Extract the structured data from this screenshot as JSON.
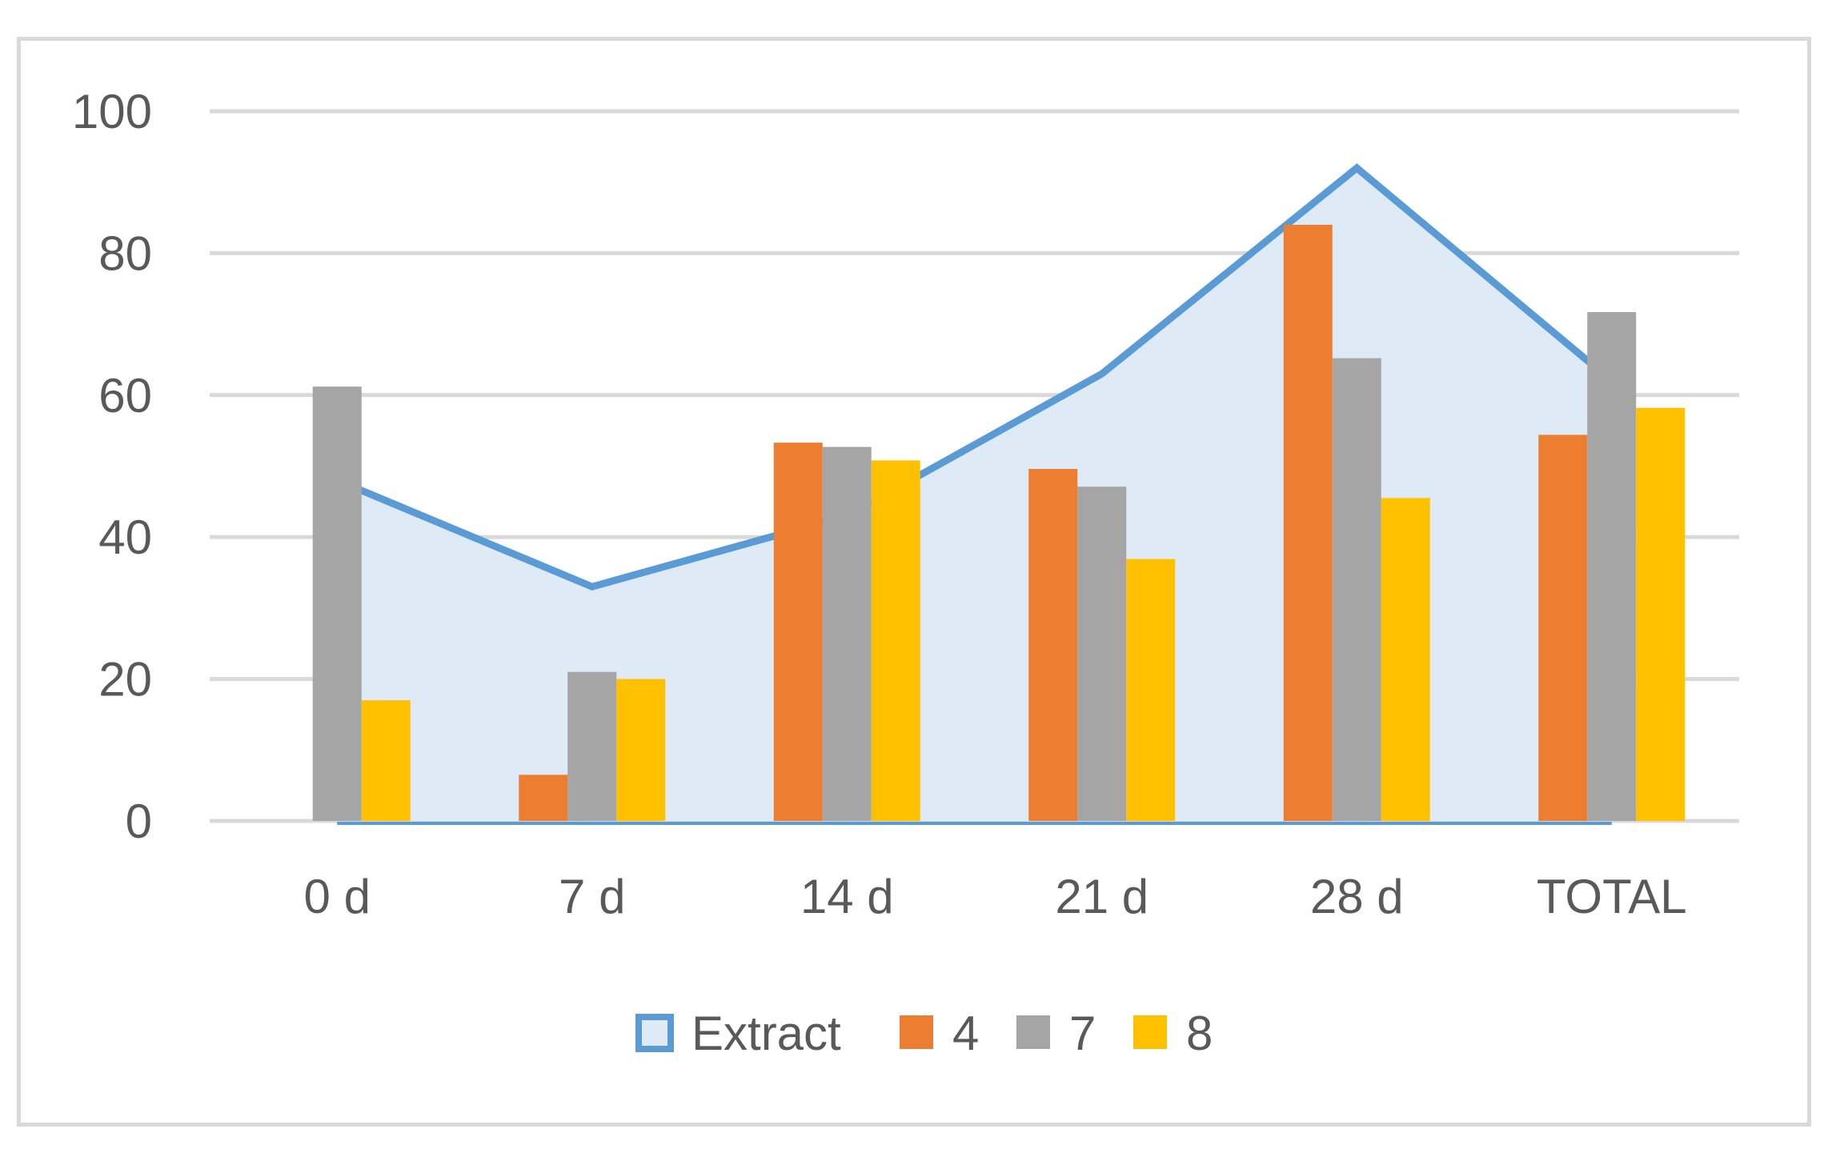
{
  "chart_data": {
    "type": "bar",
    "categories": [
      "0 d",
      "7 d",
      "14 d",
      "21 d",
      "28 d",
      "TOTAL"
    ],
    "ylim": [
      0,
      100
    ],
    "yticks": [
      0,
      20,
      40,
      60,
      80,
      100
    ],
    "grid": true,
    "legend_position": "bottom",
    "area_series": {
      "name": "Extract",
      "values": [
        48,
        33,
        43,
        63,
        92,
        62
      ],
      "line_color": "#5b9bd5",
      "fill_color": "#deebf7"
    },
    "series": [
      {
        "name": "4",
        "color": "#ed7d31",
        "values": [
          0,
          6.5,
          53.3,
          49.6,
          84,
          54.4
        ]
      },
      {
        "name": "7",
        "color": "#a5a5a5",
        "values": [
          61.2,
          21,
          52.7,
          47.1,
          65.2,
          71.7
        ]
      },
      {
        "name": "8",
        "color": "#ffc000",
        "values": [
          17,
          20,
          50.8,
          36.9,
          45.5,
          58.2
        ]
      }
    ]
  }
}
